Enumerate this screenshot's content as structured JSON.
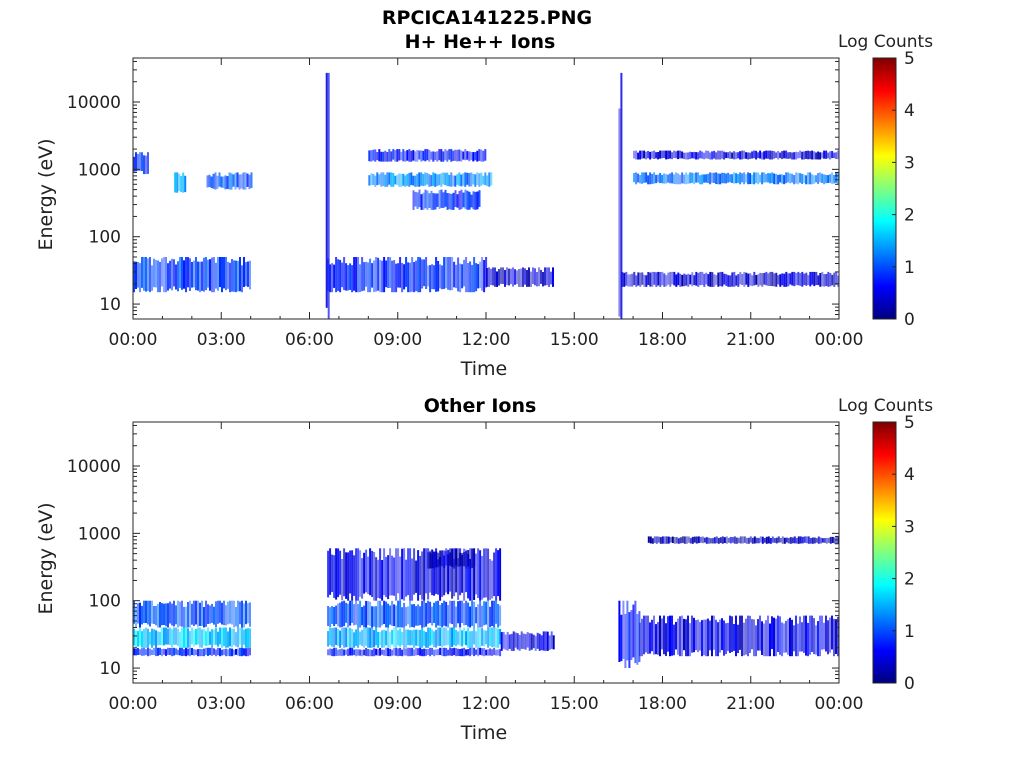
{
  "figure": {
    "title_line1": "RPCICA141225.PNG"
  },
  "colorscale": [
    "#00007f",
    "#0000ff",
    "#007fff",
    "#00ffff",
    "#7fff7f",
    "#ffff00",
    "#ff7f00",
    "#ff0000",
    "#7f0000"
  ],
  "chart_data": [
    {
      "type": "heatmap",
      "title": "H+ He++ Ions",
      "xlabel": "Time",
      "ylabel": "Energy (eV)",
      "x_ticks": [
        "00:00",
        "03:00",
        "06:00",
        "09:00",
        "12:00",
        "15:00",
        "18:00",
        "21:00",
        "00:00"
      ],
      "x_range_hours": [
        0,
        24
      ],
      "y_scale": "log",
      "y_range": [
        6,
        45000
      ],
      "y_ticks": [
        "10",
        "100",
        "1000",
        "10000"
      ],
      "y_tick_values": [
        10,
        100,
        1000,
        10000
      ],
      "colorbar": {
        "label": "Log Counts",
        "range": [
          0,
          5
        ],
        "ticks": [
          "0",
          "1",
          "2",
          "3",
          "4",
          "5"
        ]
      },
      "data_gaps_hours": [
        [
          4.0,
          6.5
        ],
        [
          14.4,
          16.5
        ]
      ],
      "bands": [
        {
          "t0": 0.0,
          "t1": 4.0,
          "e0": 15,
          "e1": 50,
          "logc": 0.9
        },
        {
          "t0": 0.0,
          "t1": 0.5,
          "e0": 850,
          "e1": 1800,
          "logc": 0.8
        },
        {
          "t0": 1.4,
          "t1": 1.8,
          "e0": 450,
          "e1": 900,
          "logc": 1.5
        },
        {
          "t0": 2.5,
          "t1": 4.0,
          "e0": 500,
          "e1": 900,
          "logc": 1.0
        },
        {
          "t0": 6.55,
          "t1": 6.65,
          "e0": 6,
          "e1": 27000,
          "logc": 0.6
        },
        {
          "t0": 6.6,
          "t1": 12.0,
          "e0": 15,
          "e1": 50,
          "logc": 0.8
        },
        {
          "t0": 12.0,
          "t1": 14.3,
          "e0": 18,
          "e1": 35,
          "logc": 0.4
        },
        {
          "t0": 8.0,
          "t1": 12.2,
          "e0": 550,
          "e1": 900,
          "logc": 1.3
        },
        {
          "t0": 8.0,
          "t1": 12.0,
          "e0": 1300,
          "e1": 2000,
          "logc": 0.7
        },
        {
          "t0": 9.5,
          "t1": 11.8,
          "e0": 250,
          "e1": 500,
          "logc": 0.8
        },
        {
          "t0": 16.5,
          "t1": 16.6,
          "e0": 6,
          "e1": 27000,
          "logc": 0.6
        },
        {
          "t0": 16.6,
          "t1": 24.0,
          "e0": 18,
          "e1": 30,
          "logc": 0.4
        },
        {
          "t0": 17.0,
          "t1": 24.0,
          "e0": 600,
          "e1": 900,
          "logc": 1.2
        },
        {
          "t0": 17.0,
          "t1": 24.0,
          "e0": 1400,
          "e1": 1900,
          "logc": 0.4
        }
      ]
    },
    {
      "type": "heatmap",
      "title": "Other Ions",
      "xlabel": "Time",
      "ylabel": "Energy (eV)",
      "x_ticks": [
        "00:00",
        "03:00",
        "06:00",
        "09:00",
        "12:00",
        "15:00",
        "18:00",
        "21:00",
        "00:00"
      ],
      "x_range_hours": [
        0,
        24
      ],
      "y_scale": "log",
      "y_range": [
        6,
        45000
      ],
      "y_ticks": [
        "10",
        "100",
        "1000",
        "10000"
      ],
      "y_tick_values": [
        10,
        100,
        1000,
        10000
      ],
      "colorbar": {
        "label": "Log Counts",
        "range": [
          0,
          5
        ],
        "ticks": [
          "0",
          "1",
          "2",
          "3",
          "4",
          "5"
        ]
      },
      "data_gaps_hours": [
        [
          4.0,
          6.5
        ],
        [
          14.4,
          16.5
        ]
      ],
      "bands": [
        {
          "t0": 0.0,
          "t1": 4.0,
          "e0": 40,
          "e1": 100,
          "logc": 1.0
        },
        {
          "t0": 0.0,
          "t1": 4.0,
          "e0": 20,
          "e1": 40,
          "logc": 1.6
        },
        {
          "t0": 0.0,
          "t1": 4.0,
          "e0": 15,
          "e1": 20,
          "logc": 0.8
        },
        {
          "t0": 6.6,
          "t1": 12.5,
          "e0": 40,
          "e1": 100,
          "logc": 1.0
        },
        {
          "t0": 6.6,
          "t1": 12.5,
          "e0": 20,
          "e1": 40,
          "logc": 1.5
        },
        {
          "t0": 6.6,
          "t1": 12.5,
          "e0": 15,
          "e1": 20,
          "logc": 0.7
        },
        {
          "t0": 6.6,
          "t1": 12.5,
          "e0": 100,
          "e1": 600,
          "logc": 0.5
        },
        {
          "t0": 10.0,
          "t1": 11.6,
          "e0": 300,
          "e1": 600,
          "logc": 0.3
        },
        {
          "t0": 12.5,
          "t1": 14.3,
          "e0": 18,
          "e1": 35,
          "logc": 0.5
        },
        {
          "t0": 16.5,
          "t1": 17.2,
          "e0": 10,
          "e1": 100,
          "logc": 0.8
        },
        {
          "t0": 17.2,
          "t1": 24.0,
          "e0": 15,
          "e1": 60,
          "logc": 0.5
        },
        {
          "t0": 17.5,
          "t1": 24.0,
          "e0": 700,
          "e1": 900,
          "logc": 0.3
        }
      ]
    }
  ]
}
